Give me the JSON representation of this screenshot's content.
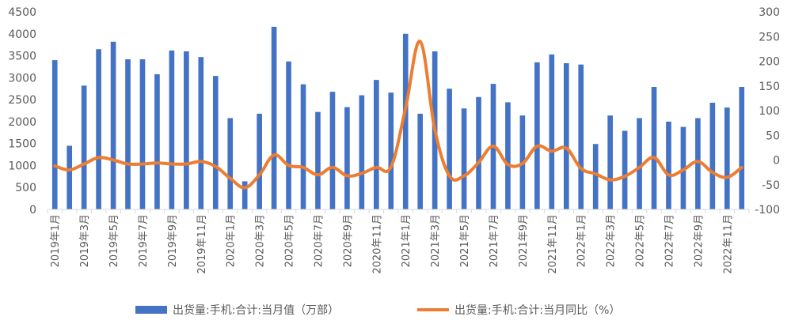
{
  "chart_data": {
    "type": "bar",
    "categories": [
      "2019年1月",
      "2019年2月",
      "2019年3月",
      "2019年4月",
      "2019年5月",
      "2019年6月",
      "2019年7月",
      "2019年8月",
      "2019年9月",
      "2019年10月",
      "2019年11月",
      "2019年12月",
      "2020年1月",
      "2020年2月",
      "2020年3月",
      "2020年4月",
      "2020年5月",
      "2020年6月",
      "2020年7月",
      "2020年8月",
      "2020年9月",
      "2020年10月",
      "2020年11月",
      "2020年12月",
      "2021年1月",
      "2021年2月",
      "2021年3月",
      "2021年4月",
      "2021年5月",
      "2021年6月",
      "2021年7月",
      "2021年8月",
      "2021年9月",
      "2021年10月",
      "2021年11月",
      "2021年12月",
      "2022年1月",
      "2022年2月",
      "2022年3月",
      "2022年4月",
      "2022年5月",
      "2022年6月",
      "2022年7月",
      "2022年8月",
      "2022年9月",
      "2022年10月",
      "2022年11月",
      "2022年12月"
    ],
    "x_tick_labels": [
      "2019年1月",
      "2019年3月",
      "2019年5月",
      "2019年7月",
      "2019年9月",
      "2019年11月",
      "2020年1月",
      "2020年3月",
      "2020年5月",
      "2020年7月",
      "2020年9月",
      "2020年11月",
      "2021年1月",
      "2021年3月",
      "2021年5月",
      "2021年7月",
      "2021年9月",
      "2021年11月",
      "2022年1月",
      "2022年3月",
      "2022年5月",
      "2022年7月",
      "2022年9月",
      "2022年11月"
    ],
    "series": [
      {
        "name": "出货量:手机:合计:当月值（万部）",
        "type": "bar",
        "axis": "left",
        "color": "#4472C4",
        "values": [
          3400,
          1450,
          2820,
          3650,
          3820,
          3420,
          3420,
          3080,
          3620,
          3600,
          3470,
          3040,
          2080,
          640,
          2180,
          4160,
          3370,
          2850,
          2220,
          2680,
          2330,
          2600,
          2950,
          2660,
          4000,
          2180,
          3600,
          2750,
          2300,
          2560,
          2860,
          2440,
          2140,
          3350,
          3530,
          3330,
          3300,
          1490,
          2140,
          1790,
          2080,
          2790,
          2000,
          1880,
          2080,
          2430,
          2320,
          2790
        ]
      },
      {
        "name": "出货量:手机:合计:当月同比（%）",
        "type": "line",
        "axis": "right",
        "color": "#ED7D31",
        "values": [
          -12,
          -20,
          -8,
          5,
          0,
          -8,
          -8,
          -6,
          -8,
          -8,
          -3,
          -13,
          -37,
          -56,
          -30,
          10,
          -11,
          -15,
          -30,
          -15,
          -32,
          -27,
          -15,
          -14,
          105,
          240,
          62,
          -32,
          -32,
          -5,
          28,
          -9,
          -7,
          28,
          18,
          24,
          -17,
          -28,
          -40,
          -33,
          -15,
          5,
          -30,
          -20,
          -3,
          -25,
          -35,
          -15
        ]
      }
    ],
    "y_left": {
      "min": 0,
      "max": 4500,
      "ticks": [
        0,
        500,
        1000,
        1500,
        2000,
        2500,
        3000,
        3500,
        4000,
        4500
      ]
    },
    "y_right": {
      "min": -100,
      "max": 300,
      "ticks": [
        -100,
        -50,
        0,
        50,
        100,
        150,
        200,
        250,
        300
      ]
    },
    "grid": false,
    "legend": "bottom"
  }
}
